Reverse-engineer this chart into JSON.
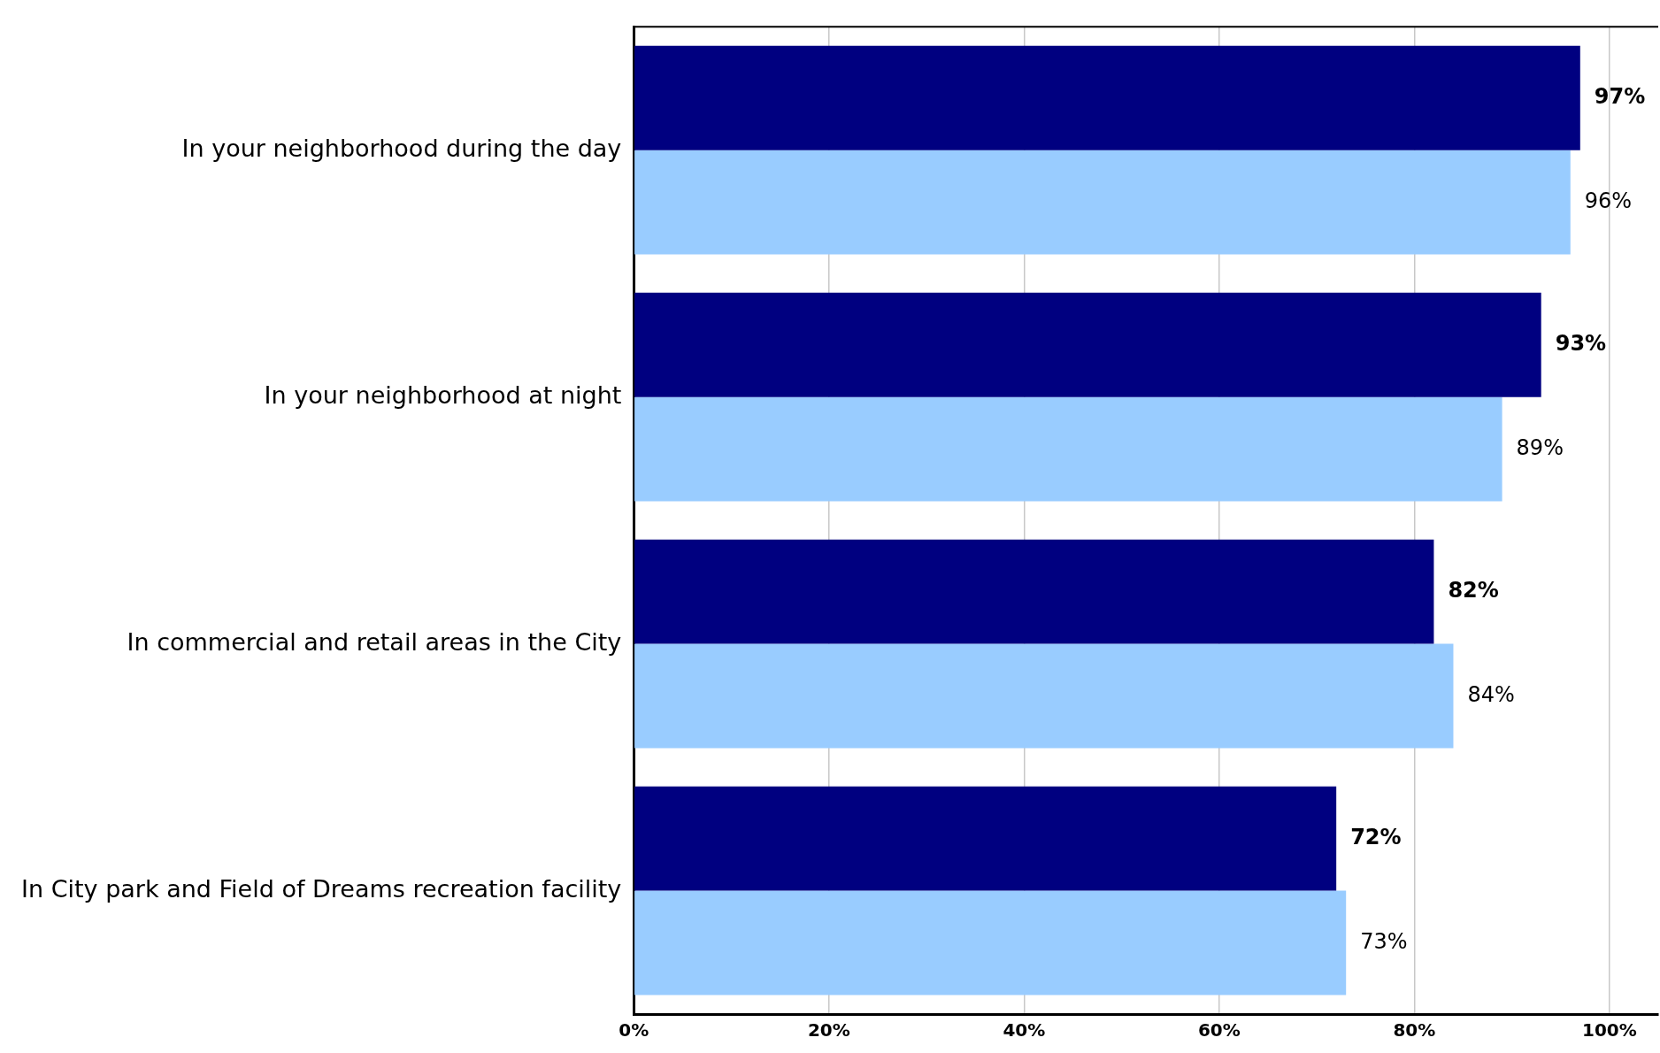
{
  "chart_data": {
    "type": "bar",
    "orientation": "horizontal",
    "categories": [
      "In your neighborhood during the day",
      "In your neighborhood at night",
      "In commercial and retail areas in the City",
      "In City park and Field of Dreams recreation facility"
    ],
    "series": [
      {
        "color": "#000080",
        "values": [
          97,
          93,
          82,
          72
        ],
        "value_labels": [
          "97%",
          "93%",
          "82%",
          "72%"
        ]
      },
      {
        "color": "#99ccff",
        "values": [
          96,
          89,
          84,
          73
        ],
        "value_labels": [
          "96%",
          "89%",
          "84%",
          "73%"
        ]
      }
    ],
    "xlim": [
      0,
      105
    ],
    "xticks": [
      {
        "value": 0,
        "label": "0%"
      },
      {
        "value": 20,
        "label": "20%"
      },
      {
        "value": 40,
        "label": "40%"
      },
      {
        "value": 60,
        "label": "60%"
      },
      {
        "value": 80,
        "label": "80%"
      },
      {
        "value": 100,
        "label": "100%"
      }
    ],
    "grid": "x",
    "legend": false
  }
}
